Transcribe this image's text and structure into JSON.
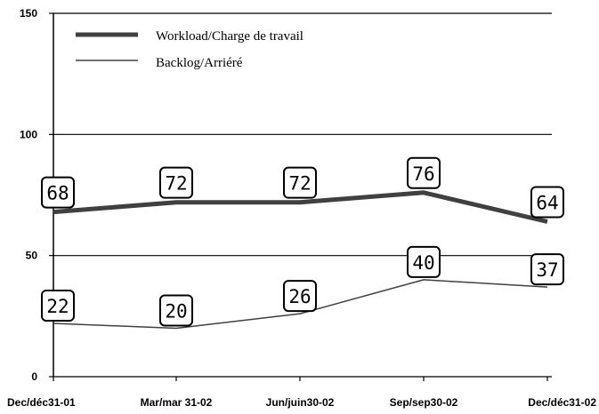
{
  "chart_data": {
    "type": "line",
    "categories": [
      "Dec/déc31-01",
      "Mar/mar 31-02",
      "Jun/juin30-02",
      "Sep/sep30-02",
      "Dec/déc31-02"
    ],
    "series": [
      {
        "name": "Workload/Charge de travail",
        "values": [
          68,
          72,
          72,
          76,
          64
        ],
        "color": "#404040",
        "style": "thick"
      },
      {
        "name": "Backlog/Arriéré",
        "values": [
          22,
          20,
          26,
          40,
          37
        ],
        "color": "#404040",
        "style": "thin"
      }
    ],
    "y_ticks": [
      "0",
      "50",
      "100",
      "150"
    ],
    "ylim": [
      0,
      150
    ],
    "grid": true,
    "legend_position": "top-left",
    "data_labels": true
  }
}
